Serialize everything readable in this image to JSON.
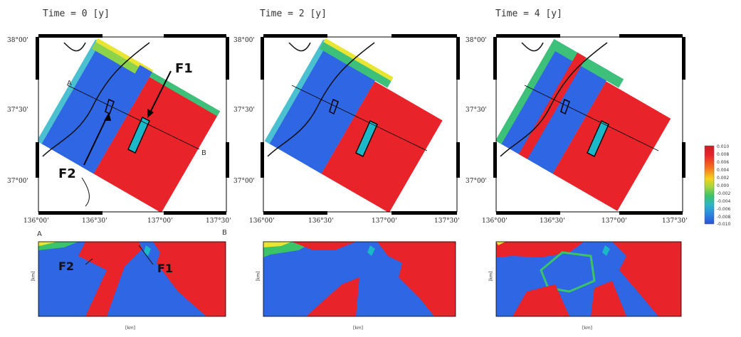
{
  "panel_titles": [
    "Time = 0  [y]",
    "Time = 2  [y]",
    "Time = 4  [y]"
  ],
  "map_axes": {
    "lat_ticks": [
      "38°00'",
      "37°30'",
      "37°00'"
    ],
    "lon_ticks": [
      "136°00'",
      "136°30'",
      "137°00'",
      "137°30'"
    ]
  },
  "labels": {
    "f1": "F1",
    "f2": "F2",
    "a": "A",
    "b": "B",
    "section_a": "A",
    "section_b": "B"
  },
  "colorbar": {
    "ticks": [
      "0.010",
      "0.008",
      "0.006",
      "0.004",
      "0.002",
      "0.000",
      "-0.002",
      "-0.004",
      "-0.006",
      "-0.008",
      "-0.010"
    ],
    "colors": [
      "#e8232a",
      "#f25a1e",
      "#f9a21b",
      "#f5e81a",
      "#9fd33f",
      "#3bc36a",
      "#2fb3c9",
      "#2b84e0",
      "#2a55d9"
    ]
  },
  "section_axes": {
    "xlabel": "[km]",
    "ylabel": "[km]"
  }
}
